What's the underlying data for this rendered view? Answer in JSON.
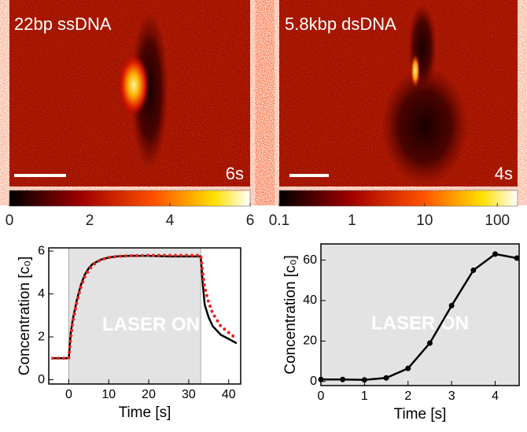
{
  "images": [
    {
      "label": "22bp ssDNA",
      "time": "6s",
      "colorbar": {
        "lim": [
          0,
          6
        ],
        "ticks": [
          0,
          2,
          4,
          6
        ],
        "log": false
      }
    },
    {
      "label": "5.8kbp dsDNA",
      "time": "4s",
      "colorbar": {
        "lim": [
          0.1,
          190
        ],
        "ticks": [
          0.1,
          1,
          10,
          100
        ],
        "log": true
      }
    }
  ],
  "chart_data": [
    {
      "type": "line",
      "xlabel": "Time [s]",
      "ylabel": "Concentration [c₀]",
      "annotation": "LASER ON",
      "shade": [
        0,
        33
      ],
      "xlim": [
        -5,
        43
      ],
      "ylim": [
        -0.2,
        6.15
      ],
      "xticks": [
        0,
        10,
        20,
        30,
        40
      ],
      "yticks": [
        0,
        2,
        4,
        6
      ],
      "x": [
        -4,
        -2,
        -0.5,
        0,
        0.5,
        1,
        2,
        3,
        4,
        5,
        6,
        8,
        10,
        12,
        15,
        20,
        25,
        30,
        33,
        33.5,
        34,
        35,
        36,
        38,
        40,
        42
      ],
      "series": [
        {
          "color": "#000000",
          "style": "solid",
          "values": [
            1,
            1,
            1,
            1,
            2.2,
            2.8,
            3.7,
            4.4,
            4.9,
            5.2,
            5.4,
            5.6,
            5.7,
            5.75,
            5.78,
            5.78,
            5.75,
            5.75,
            5.75,
            4.5,
            3.5,
            2.9,
            2.5,
            2.1,
            1.9,
            1.7
          ]
        },
        {
          "color": "#e8231d",
          "style": "dotted",
          "values": [
            1,
            1,
            1,
            1,
            2.0,
            2.7,
            3.6,
            4.3,
            4.8,
            5.1,
            5.35,
            5.6,
            5.7,
            5.75,
            5.78,
            5.8,
            5.8,
            5.8,
            5.8,
            5.0,
            4.3,
            3.6,
            3.1,
            2.5,
            2.2,
            1.9
          ]
        }
      ]
    },
    {
      "type": "line",
      "xlabel": "Time [s]",
      "ylabel": "Concentration [c₀]",
      "annotation": "LASER ON",
      "shade": [
        0,
        4.55
      ],
      "xlim": [
        0,
        4.55
      ],
      "ylim": [
        -2,
        68
      ],
      "xticks": [
        0,
        1,
        2,
        3,
        4
      ],
      "yticks": [
        0,
        20,
        40,
        60
      ],
      "markers": true,
      "x": [
        0,
        0.5,
        1,
        1.5,
        2,
        2.5,
        3,
        3.5,
        4,
        4.5
      ],
      "series": [
        {
          "color": "#000000",
          "style": "solid",
          "values": [
            1,
            1,
            0.8,
            1.8,
            6.5,
            19,
            37.5,
            55,
            63,
            61
          ]
        }
      ]
    }
  ]
}
